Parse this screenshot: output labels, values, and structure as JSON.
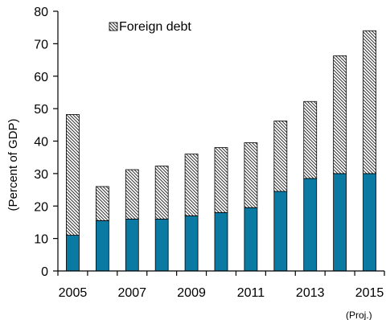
{
  "chart_data": {
    "type": "bar",
    "stacked": true,
    "categories": [
      "2005",
      "2006",
      "2007",
      "2008",
      "2009",
      "2010",
      "2011",
      "2012",
      "2013",
      "2014",
      "2015"
    ],
    "x_tick_labels": [
      "2005",
      "",
      "2007",
      "",
      "2009",
      "",
      "2011",
      "",
      "2013",
      "",
      "2015"
    ],
    "series": [
      {
        "values": [
          11,
          15.5,
          16,
          16,
          17,
          18,
          19.5,
          24.5,
          28.5,
          30,
          30
        ],
        "color": "#0a7aa3",
        "pattern": "solid"
      },
      {
        "name": "Foreign debt",
        "values": [
          37.2,
          10.5,
          15.2,
          16.3,
          19,
          20,
          20,
          21.7,
          23.7,
          36.3,
          44
        ],
        "color": "#ffffff",
        "pattern": "diagonal-hatch"
      }
    ],
    "ylabel": "(Percent of GDP)",
    "ylim": [
      0,
      80
    ],
    "yticks": [
      0,
      10,
      20,
      30,
      40,
      50,
      60,
      70,
      80
    ],
    "legend": "top-left",
    "grid": false,
    "note": "(Proj.)"
  }
}
